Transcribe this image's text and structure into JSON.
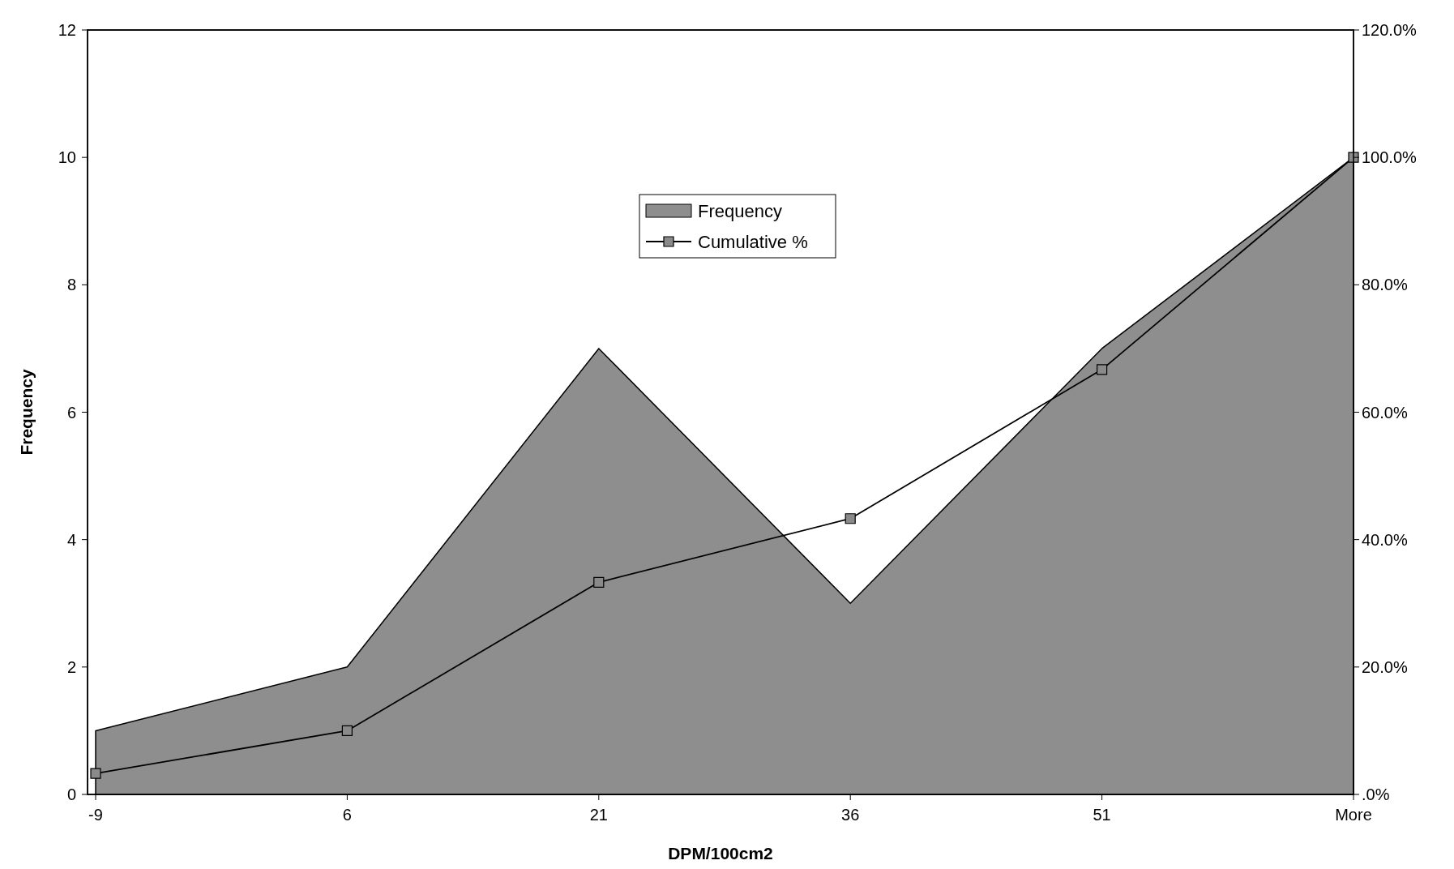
{
  "chart_data": {
    "type": "area",
    "xlabel": "DPM/100cm2",
    "ylabel": "Frequency",
    "categories": [
      "-9",
      "6",
      "21",
      "36",
      "51",
      "More"
    ],
    "series": [
      {
        "name": "Frequency",
        "color": "#8e8e8e",
        "values": [
          1,
          2,
          7,
          3,
          7,
          10
        ]
      },
      {
        "name": "Cumulative %",
        "type": "line",
        "axis": "y2",
        "color": "#000000",
        "marker": "square",
        "values": [
          3.3,
          10.0,
          33.3,
          43.3,
          66.7,
          100.0
        ]
      }
    ],
    "ylim": [
      0,
      12
    ],
    "yticks": [
      0,
      2,
      4,
      6,
      8,
      10,
      12
    ],
    "y2lim": [
      0,
      120
    ],
    "y2ticks": [
      {
        "value": 0,
        "label": ".0%"
      },
      {
        "value": 20,
        "label": "20.0%"
      },
      {
        "value": 40,
        "label": "40.0%"
      },
      {
        "value": 60,
        "label": "60.0%"
      },
      {
        "value": 80,
        "label": "80.0%"
      },
      {
        "value": 100,
        "label": "100.0%"
      },
      {
        "value": 120,
        "label": "120.0%"
      }
    ],
    "legend": "top",
    "grid": false
  }
}
